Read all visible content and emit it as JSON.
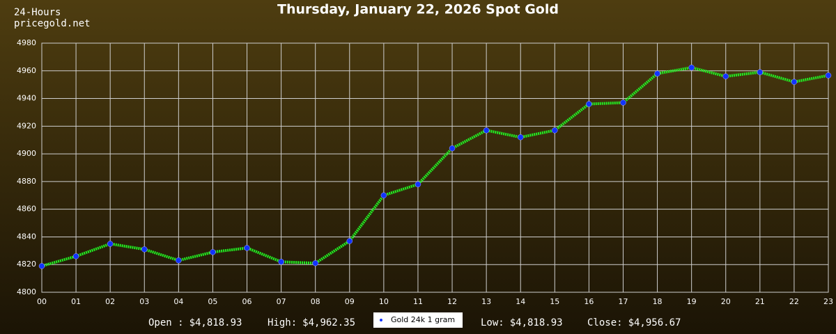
{
  "chart_data": {
    "type": "line",
    "title": "Thursday, January 22, 2026 Spot Gold",
    "header_lines": [
      "24-Hours",
      "pricegold.net"
    ],
    "categories": [
      "00",
      "01",
      "02",
      "03",
      "04",
      "05",
      "06",
      "07",
      "08",
      "09",
      "10",
      "11",
      "12",
      "13",
      "14",
      "15",
      "16",
      "17",
      "18",
      "19",
      "20",
      "21",
      "22",
      "23"
    ],
    "series": [
      {
        "name": "Gold 24k 1 gram",
        "color": "#22ee22",
        "marker_color": "#1133ff",
        "values": [
          4818.93,
          4826,
          4835,
          4831,
          4823,
          4829,
          4832,
          4822,
          4821,
          4837,
          4870,
          4878,
          4904,
          4917,
          4912,
          4917,
          4936,
          4937,
          4958,
          4962.35,
          4956,
          4959,
          4952,
          4956.67
        ]
      }
    ],
    "ylim": [
      4800,
      4980
    ],
    "yticks": [
      4800,
      4820,
      4840,
      4860,
      4880,
      4900,
      4920,
      4940,
      4960,
      4980
    ],
    "grid": true,
    "stats": [
      {
        "label": "Open :",
        "value": "$4,818.93"
      },
      {
        "label": "High:",
        "value": "$4,962.35"
      },
      {
        "label": "Low:",
        "value": "$4,818.93"
      },
      {
        "label": "Close:",
        "value": "$4,956.67"
      }
    ]
  }
}
